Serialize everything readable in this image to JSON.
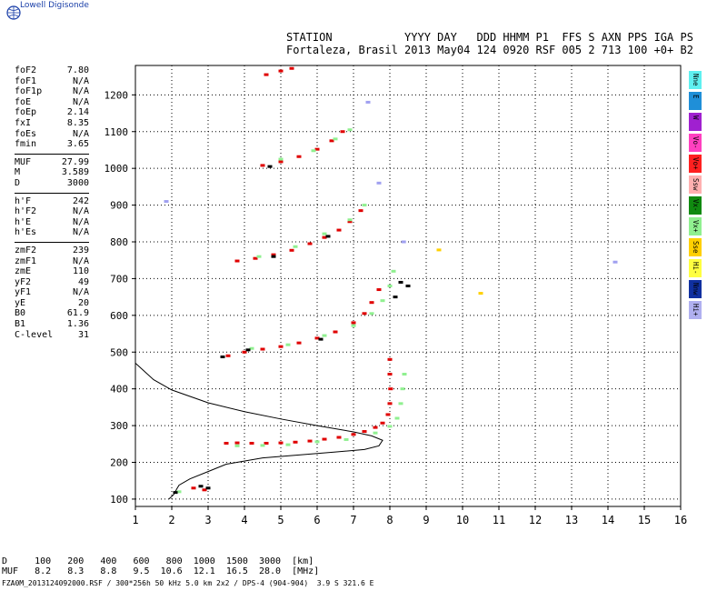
{
  "brand": "Lowell Digisonde",
  "header": {
    "line1": "STATION           YYYY DAY   DDD HHMM P1  FFS S AXN PPS IGA PS",
    "line2": "Fortaleza, Brasil 2013 May04 124 0920 RSF 005 2 713 100 +0+ B2"
  },
  "params": [
    [
      {
        "k": "foF2",
        "v": "7.80"
      },
      {
        "k": "foF1",
        "v": "N/A"
      },
      {
        "k": "foF1p",
        "v": "N/A"
      },
      {
        "k": "foE",
        "v": "N/A"
      },
      {
        "k": "foEp",
        "v": "2.14"
      },
      {
        "k": "fxI",
        "v": "8.35"
      },
      {
        "k": "foEs",
        "v": "N/A"
      },
      {
        "k": "fmin",
        "v": "3.65"
      }
    ],
    [
      {
        "k": "MUF",
        "v": "27.99"
      },
      {
        "k": "M",
        "v": "3.589"
      },
      {
        "k": "D",
        "v": "3000"
      }
    ],
    [
      {
        "k": "h'F",
        "v": "242"
      },
      {
        "k": "h'F2",
        "v": "N/A"
      },
      {
        "k": "h'E",
        "v": "N/A"
      },
      {
        "k": "h'Es",
        "v": "N/A"
      }
    ],
    [
      {
        "k": "zmF2",
        "v": "239"
      },
      {
        "k": "zmF1",
        "v": "N/A"
      },
      {
        "k": "zmE",
        "v": "110"
      },
      {
        "k": "yF2",
        "v": "49"
      },
      {
        "k": "yF1",
        "v": "N/A"
      },
      {
        "k": "yE",
        "v": "20"
      },
      {
        "k": "B0",
        "v": "61.9"
      },
      {
        "k": "B1",
        "v": "1.36"
      },
      {
        "k": "C-level",
        "v": "31"
      }
    ]
  ],
  "legend": [
    {
      "label": "Nne",
      "color": "#5ff0f0"
    },
    {
      "label": "E",
      "color": "#1f8fd8"
    },
    {
      "label": "W",
      "color": "#a020d0"
    },
    {
      "label": "Vo-",
      "color": "#ff40c0"
    },
    {
      "label": "Vo+",
      "color": "#ff2020"
    },
    {
      "label": "Ssw",
      "color": "#ffb0b0"
    },
    {
      "label": "Vx-",
      "color": "#108a10"
    },
    {
      "label": "Vx+",
      "color": "#90f090"
    },
    {
      "label": "Sse",
      "color": "#ffd000"
    },
    {
      "label": "Hi-",
      "color": "#ffff40"
    },
    {
      "label": "Nnw",
      "color": "#1030a0"
    },
    {
      "label": "Hi+",
      "color": "#b0b0f0"
    }
  ],
  "muf_table": {
    "row1": "D     100   200   400   600   800  1000  1500  3000  [km]",
    "row2": "MUF   8.2   8.3   8.8   9.5  10.6  12.1  16.5  28.0  [MHz]"
  },
  "footer": "FZA0M_2013124092000.RSF / 300*256h 50 kHz 5.0 km 2x2 / DPS-4 (904-904)  3.9 S 321.6 E",
  "chart_data": {
    "type": "scatter",
    "x_ticks": [
      "1",
      "2",
      "3",
      "4",
      "5",
      "6",
      "7",
      "8",
      "9",
      "10",
      "11",
      "12",
      "13",
      "14",
      "15",
      "16"
    ],
    "y_ticks": [
      "100",
      "200",
      "300",
      "400",
      "500",
      "600",
      "700",
      "800",
      "900",
      "1000",
      "1100",
      "1200"
    ],
    "xlim": [
      1,
      16
    ],
    "ylim": [
      80,
      1280
    ],
    "grid": true,
    "series": [
      {
        "color": "#e00000",
        "points": [
          [
            2.6,
            130
          ],
          [
            2.9,
            125
          ],
          [
            3.5,
            252
          ],
          [
            3.8,
            253
          ],
          [
            4.2,
            252
          ],
          [
            4.6,
            252
          ],
          [
            5.0,
            253
          ],
          [
            5.4,
            255
          ],
          [
            5.8,
            258
          ],
          [
            6.2,
            263
          ],
          [
            6.6,
            268
          ],
          [
            7.0,
            276
          ],
          [
            7.3,
            284
          ],
          [
            7.6,
            295
          ],
          [
            7.8,
            307
          ],
          [
            7.95,
            330
          ],
          [
            8.0,
            360
          ],
          [
            8.02,
            400
          ],
          [
            8.0,
            440
          ],
          [
            8.0,
            480
          ],
          [
            3.55,
            490
          ],
          [
            4.0,
            500
          ],
          [
            4.5,
            508
          ],
          [
            5.0,
            515
          ],
          [
            5.5,
            525
          ],
          [
            6.0,
            538
          ],
          [
            6.5,
            555
          ],
          [
            7.0,
            580
          ],
          [
            7.3,
            605
          ],
          [
            7.5,
            635
          ],
          [
            7.7,
            670
          ],
          [
            3.8,
            748
          ],
          [
            4.3,
            755
          ],
          [
            4.8,
            765
          ],
          [
            5.3,
            777
          ],
          [
            5.8,
            795
          ],
          [
            6.2,
            812
          ],
          [
            6.6,
            832
          ],
          [
            6.9,
            855
          ],
          [
            7.2,
            885
          ],
          [
            4.5,
            1008
          ],
          [
            5.0,
            1018
          ],
          [
            5.5,
            1032
          ],
          [
            6.0,
            1052
          ],
          [
            6.4,
            1075
          ],
          [
            6.7,
            1100
          ],
          [
            4.6,
            1255
          ],
          [
            5.0,
            1265
          ],
          [
            5.3,
            1272
          ]
        ]
      },
      {
        "color": "#90f090",
        "points": [
          [
            2.2,
            120
          ],
          [
            3.8,
            245
          ],
          [
            4.5,
            246
          ],
          [
            5.2,
            248
          ],
          [
            6.0,
            256
          ],
          [
            6.8,
            262
          ],
          [
            7.6,
            280
          ],
          [
            8.0,
            298
          ],
          [
            8.2,
            320
          ],
          [
            8.3,
            360
          ],
          [
            8.35,
            400
          ],
          [
            8.4,
            440
          ],
          [
            4.2,
            510
          ],
          [
            5.2,
            520
          ],
          [
            6.2,
            545
          ],
          [
            7.0,
            572
          ],
          [
            7.5,
            605
          ],
          [
            7.8,
            640
          ],
          [
            8.0,
            680
          ],
          [
            8.1,
            720
          ],
          [
            4.4,
            760
          ],
          [
            5.4,
            787
          ],
          [
            6.2,
            822
          ],
          [
            6.9,
            860
          ],
          [
            7.3,
            900
          ],
          [
            5.0,
            1025
          ],
          [
            5.9,
            1048
          ],
          [
            6.5,
            1080
          ],
          [
            6.9,
            1105
          ]
        ]
      },
      {
        "color": "#000000",
        "points": [
          [
            2.1,
            118
          ],
          [
            2.8,
            135
          ],
          [
            3.0,
            130
          ],
          [
            3.4,
            487
          ],
          [
            4.1,
            506
          ],
          [
            6.1,
            535
          ],
          [
            8.15,
            650
          ],
          [
            8.3,
            690
          ],
          [
            8.5,
            680
          ],
          [
            4.8,
            760
          ],
          [
            6.3,
            815
          ],
          [
            4.7,
            1005
          ]
        ]
      },
      {
        "color": "#a0a0f0",
        "points": [
          [
            1.85,
            910
          ],
          [
            8.38,
            800
          ],
          [
            7.7,
            960
          ],
          [
            7.4,
            1180
          ],
          [
            14.2,
            745
          ]
        ]
      },
      {
        "color": "#ffd000",
        "points": [
          [
            9.35,
            778
          ],
          [
            10.5,
            660
          ]
        ]
      }
    ],
    "profile": [
      [
        1.0,
        470
      ],
      [
        1.5,
        425
      ],
      [
        2.0,
        397
      ],
      [
        3.0,
        362
      ],
      [
        4.0,
        338
      ],
      [
        5.0,
        318
      ],
      [
        6.0,
        300
      ],
      [
        7.0,
        283
      ],
      [
        7.5,
        272
      ],
      [
        7.8,
        260
      ],
      [
        7.7,
        245
      ],
      [
        7.3,
        235
      ],
      [
        6.5,
        228
      ],
      [
        5.5,
        220
      ],
      [
        4.5,
        212
      ],
      [
        3.5,
        195
      ],
      [
        3.0,
        175
      ],
      [
        2.5,
        155
      ],
      [
        2.2,
        138
      ],
      [
        2.14,
        128
      ],
      [
        2.05,
        112
      ],
      [
        1.92,
        100
      ]
    ]
  }
}
